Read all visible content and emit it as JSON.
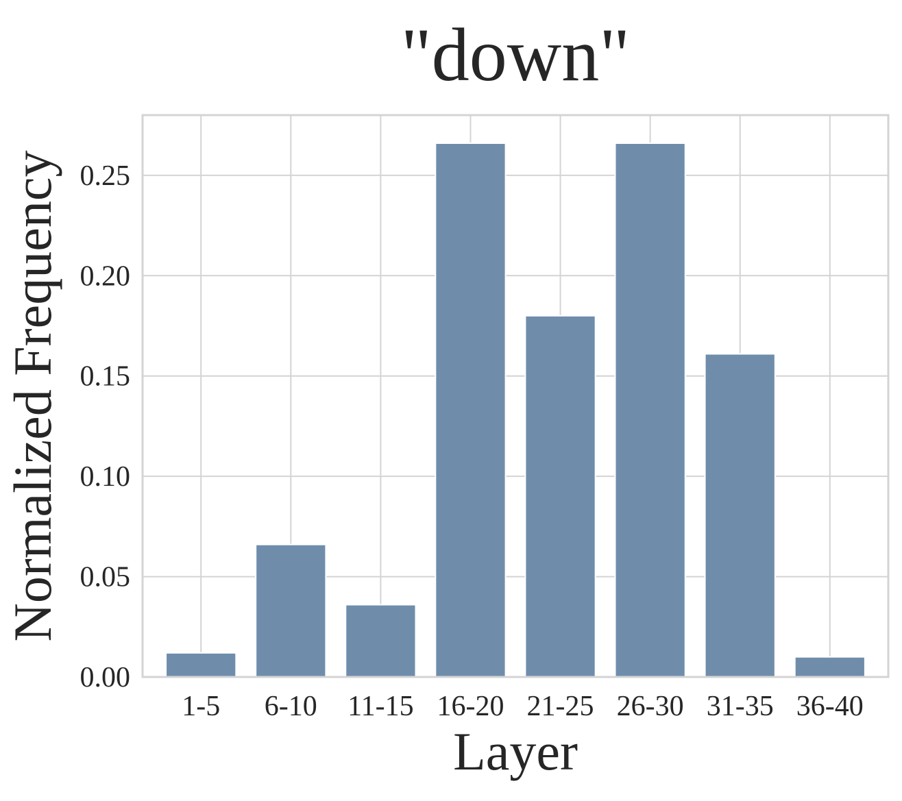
{
  "chart_data": {
    "type": "bar",
    "title": "\"down\"",
    "xlabel": "Layer",
    "ylabel": "Normalized Frequency",
    "categories": [
      "1-5",
      "6-10",
      "11-15",
      "16-20",
      "21-25",
      "26-30",
      "31-35",
      "36-40"
    ],
    "values": [
      0.012,
      0.066,
      0.036,
      0.266,
      0.18,
      0.266,
      0.161,
      0.01
    ],
    "ylim": [
      0,
      0.28
    ],
    "yticks": [
      0.0,
      0.05,
      0.1,
      0.15,
      0.2,
      0.25
    ],
    "ytick_labels": [
      "0.00",
      "0.05",
      "0.10",
      "0.15",
      "0.20",
      "0.25"
    ],
    "grid": true,
    "colors": {
      "bar": "#6f8dab",
      "grid": "#d4d4d4",
      "frame": "#d4d4d4",
      "text": "#262626"
    }
  }
}
